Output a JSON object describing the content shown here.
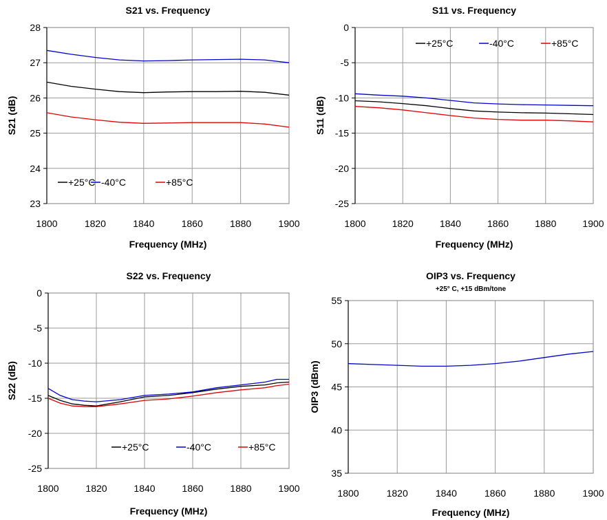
{
  "chart_data": [
    {
      "type": "line",
      "title": "S21 vs. Frequency",
      "subtitle": "",
      "xlabel": "Frequency (MHz)",
      "ylabel": "S21 (dB)",
      "xlim": [
        1800,
        1900
      ],
      "ylim": [
        23,
        28
      ],
      "xticks": [
        1800,
        1820,
        1840,
        1860,
        1880,
        1900
      ],
      "yticks": [
        23,
        24,
        25,
        26,
        27,
        28
      ],
      "grid": true,
      "legend_position": "bottom-left",
      "series": [
        {
          "name": "+25°C",
          "color": "#000000",
          "x": [
            1800,
            1810,
            1820,
            1830,
            1840,
            1850,
            1860,
            1870,
            1880,
            1890,
            1900
          ],
          "y": [
            26.45,
            26.33,
            26.25,
            26.18,
            26.15,
            26.17,
            26.18,
            26.18,
            26.19,
            26.16,
            26.08
          ]
        },
        {
          "name": "-40°C",
          "color": "#0000cc",
          "x": [
            1800,
            1810,
            1820,
            1830,
            1840,
            1850,
            1860,
            1870,
            1880,
            1890,
            1900
          ],
          "y": [
            27.35,
            27.24,
            27.15,
            27.08,
            27.05,
            27.06,
            27.08,
            27.09,
            27.1,
            27.08,
            27.0
          ]
        },
        {
          "name": "+85°C",
          "color": "#e00000",
          "x": [
            1800,
            1810,
            1820,
            1830,
            1840,
            1850,
            1860,
            1870,
            1880,
            1890,
            1900
          ],
          "y": [
            25.58,
            25.46,
            25.38,
            25.31,
            25.28,
            25.29,
            25.3,
            25.3,
            25.3,
            25.26,
            25.17
          ]
        }
      ]
    },
    {
      "type": "line",
      "title": "S11 vs. Frequency",
      "subtitle": "",
      "xlabel": "Frequency (MHz)",
      "ylabel": "S11 (dB)",
      "xlim": [
        1800,
        1900
      ],
      "ylim": [
        -25,
        0
      ],
      "xticks": [
        1800,
        1820,
        1840,
        1860,
        1880,
        1900
      ],
      "yticks": [
        -25,
        -20,
        -15,
        -10,
        -5,
        0
      ],
      "grid": true,
      "legend_position": "top-right",
      "series": [
        {
          "name": "+25°C",
          "color": "#000000",
          "x": [
            1800,
            1810,
            1820,
            1830,
            1840,
            1850,
            1860,
            1870,
            1880,
            1890,
            1900
          ],
          "y": [
            -10.4,
            -10.55,
            -10.8,
            -11.1,
            -11.5,
            -11.85,
            -12.0,
            -12.1,
            -12.15,
            -12.25,
            -12.35
          ]
        },
        {
          "name": "-40°C",
          "color": "#0000cc",
          "x": [
            1800,
            1810,
            1820,
            1830,
            1840,
            1850,
            1860,
            1870,
            1880,
            1890,
            1900
          ],
          "y": [
            -9.4,
            -9.6,
            -9.75,
            -10.0,
            -10.35,
            -10.7,
            -10.85,
            -10.95,
            -11.0,
            -11.05,
            -11.1
          ]
        },
        {
          "name": "+85°C",
          "color": "#e00000",
          "x": [
            1800,
            1810,
            1820,
            1830,
            1840,
            1850,
            1860,
            1870,
            1880,
            1890,
            1900
          ],
          "y": [
            -11.2,
            -11.4,
            -11.7,
            -12.1,
            -12.5,
            -12.85,
            -13.05,
            -13.15,
            -13.15,
            -13.25,
            -13.4
          ]
        }
      ]
    },
    {
      "type": "line",
      "title": "S22 vs. Frequency",
      "subtitle": "",
      "xlabel": "Frequency (MHz)",
      "ylabel": "S22 (dB)",
      "xlim": [
        1800,
        1900
      ],
      "ylim": [
        -25,
        0
      ],
      "xticks": [
        1800,
        1820,
        1840,
        1860,
        1880,
        1900
      ],
      "yticks": [
        -25,
        -20,
        -15,
        -10,
        -5,
        0
      ],
      "grid": true,
      "legend_position": "bottom-right",
      "series": [
        {
          "name": "+25°C",
          "color": "#000000",
          "x": [
            1800,
            1805,
            1810,
            1815,
            1820,
            1830,
            1840,
            1850,
            1860,
            1870,
            1880,
            1890,
            1895,
            1900
          ],
          "y": [
            -14.6,
            -15.3,
            -15.8,
            -16.0,
            -16.1,
            -15.5,
            -14.8,
            -14.6,
            -14.2,
            -13.7,
            -13.3,
            -13.1,
            -12.8,
            -12.7
          ]
        },
        {
          "name": "-40°C",
          "color": "#0000cc",
          "x": [
            1800,
            1805,
            1810,
            1815,
            1820,
            1830,
            1840,
            1850,
            1860,
            1870,
            1880,
            1890,
            1895,
            1900
          ],
          "y": [
            -13.6,
            -14.6,
            -15.2,
            -15.4,
            -15.5,
            -15.2,
            -14.6,
            -14.4,
            -14.1,
            -13.5,
            -13.1,
            -12.7,
            -12.3,
            -12.3
          ]
        },
        {
          "name": "+85°C",
          "color": "#e00000",
          "x": [
            1800,
            1805,
            1810,
            1815,
            1820,
            1830,
            1840,
            1850,
            1860,
            1870,
            1880,
            1890,
            1895,
            1900
          ],
          "y": [
            -15.0,
            -15.7,
            -16.1,
            -16.2,
            -16.2,
            -15.8,
            -15.3,
            -15.1,
            -14.7,
            -14.2,
            -13.8,
            -13.5,
            -13.2,
            -13.0
          ]
        }
      ]
    },
    {
      "type": "line",
      "title": "OIP3 vs. Frequency",
      "subtitle": "+25° C, +15 dBm/tone",
      "xlabel": "Frequency (MHz)",
      "ylabel": "OIP3 (dBm)",
      "xlim": [
        1800,
        1900
      ],
      "ylim": [
        35,
        55
      ],
      "xticks": [
        1800,
        1820,
        1840,
        1860,
        1880,
        1900
      ],
      "yticks": [
        35,
        40,
        45,
        50,
        55
      ],
      "grid": true,
      "legend_position": "none",
      "series": [
        {
          "name": "",
          "color": "#0000cc",
          "x": [
            1800,
            1810,
            1820,
            1830,
            1840,
            1850,
            1860,
            1870,
            1880,
            1890,
            1900
          ],
          "y": [
            47.7,
            47.6,
            47.5,
            47.4,
            47.4,
            47.5,
            47.7,
            48.0,
            48.4,
            48.8,
            49.1
          ]
        }
      ]
    }
  ]
}
